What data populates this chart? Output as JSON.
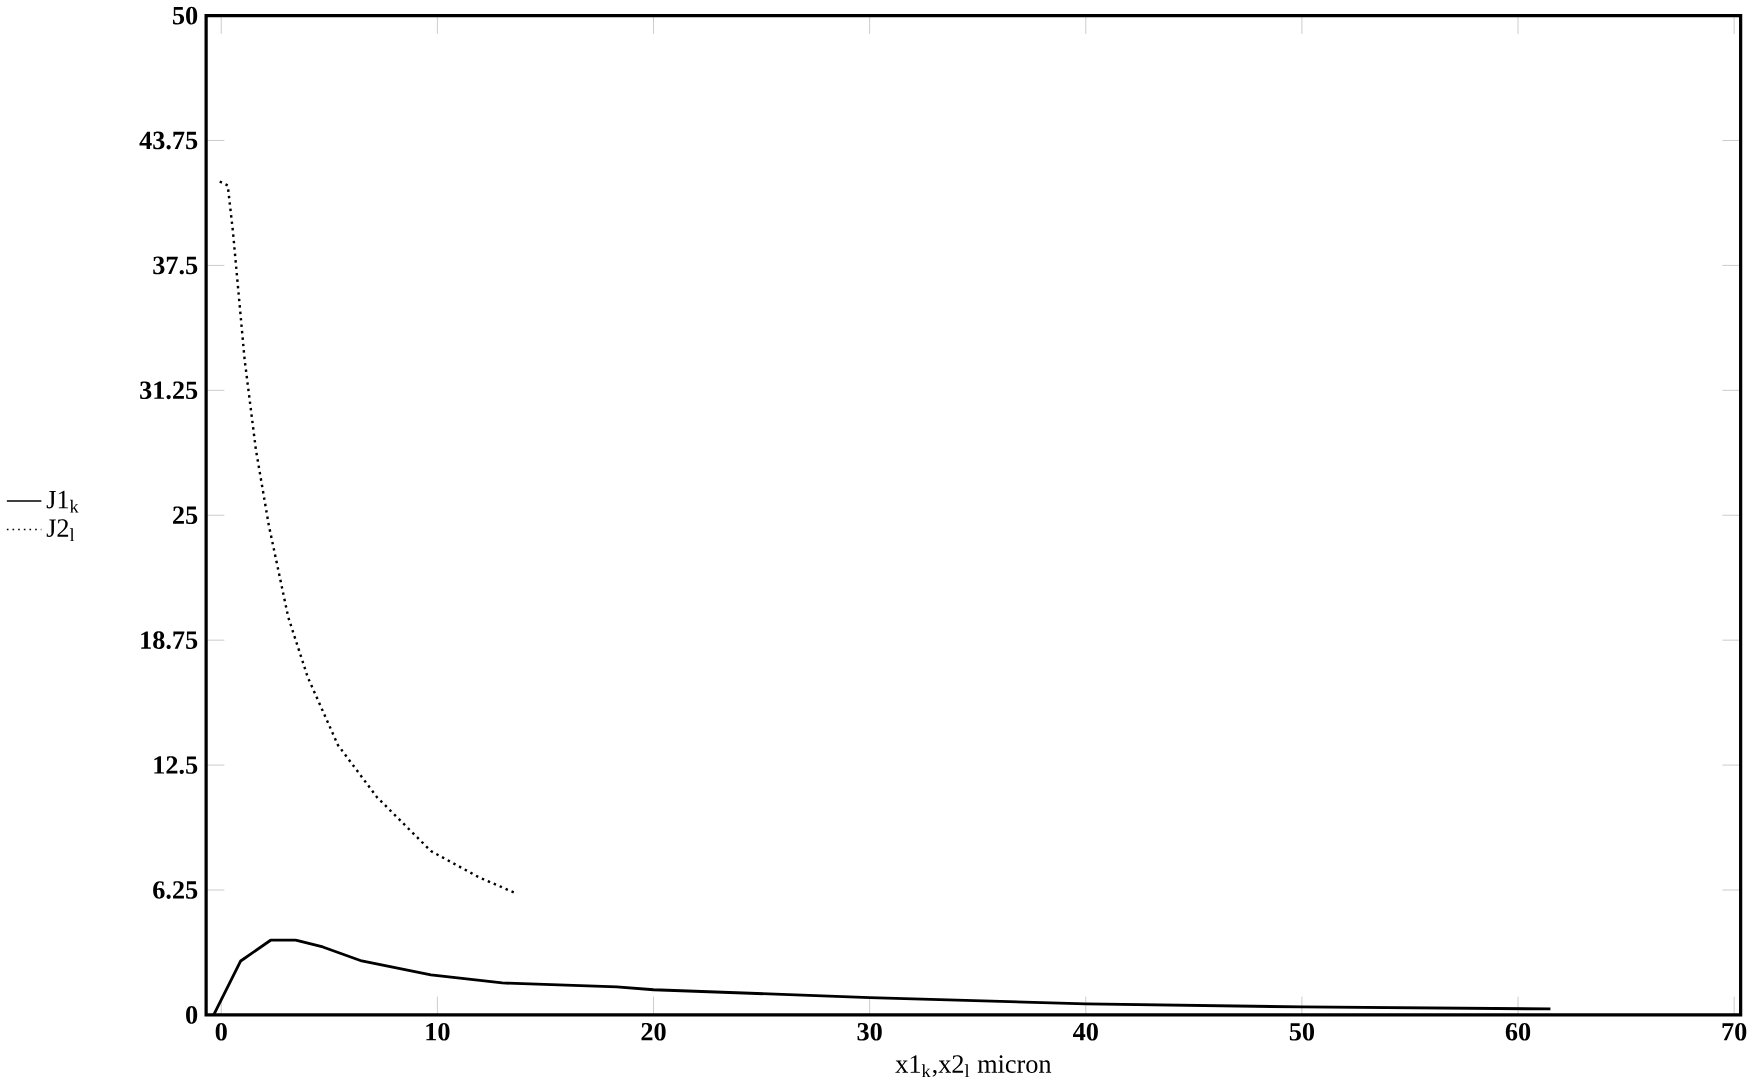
{
  "chart_data": {
    "type": "line",
    "xlabel": "x1$_{k}$,x2$_{l}$    micron",
    "xlim": [
      -0.7,
      70.3
    ],
    "ylim": [
      0,
      50
    ],
    "xticks": [
      0,
      10,
      20,
      30,
      40,
      50,
      60,
      70
    ],
    "yticks": [
      0,
      6.25,
      12.5,
      18.75,
      25,
      31.25,
      37.5,
      43.75,
      50
    ],
    "legend": "left",
    "grid": false,
    "marker": "none",
    "series": [
      {
        "name": "J1$_{k}$",
        "color": "#000000",
        "line_style": "solid",
        "x": [
          -0.35,
          0.9,
          2.3,
          3.4,
          4.7,
          6.5,
          9.7,
          13,
          18.3,
          20,
          30,
          40,
          50,
          61.5
        ],
        "values": [
          0,
          2.7,
          3.75,
          3.75,
          3.4,
          2.7,
          2.0,
          1.6,
          1.4,
          1.26,
          0.87,
          0.55,
          0.4,
          0.3
        ]
      },
      {
        "name": "J2$_{l}$",
        "color": "#000000",
        "line_style": "dotted",
        "x": [
          -0.07,
          0.3,
          0.54,
          1.08,
          1.6,
          2.2,
          3.1,
          4.0,
          5.4,
          7.2,
          9.7,
          11.9,
          13.6
        ],
        "values": [
          41.7,
          41.5,
          39.2,
          32.8,
          28.3,
          24.5,
          19.9,
          16.9,
          13.5,
          10.9,
          8.2,
          6.9,
          6.1
        ]
      }
    ]
  }
}
